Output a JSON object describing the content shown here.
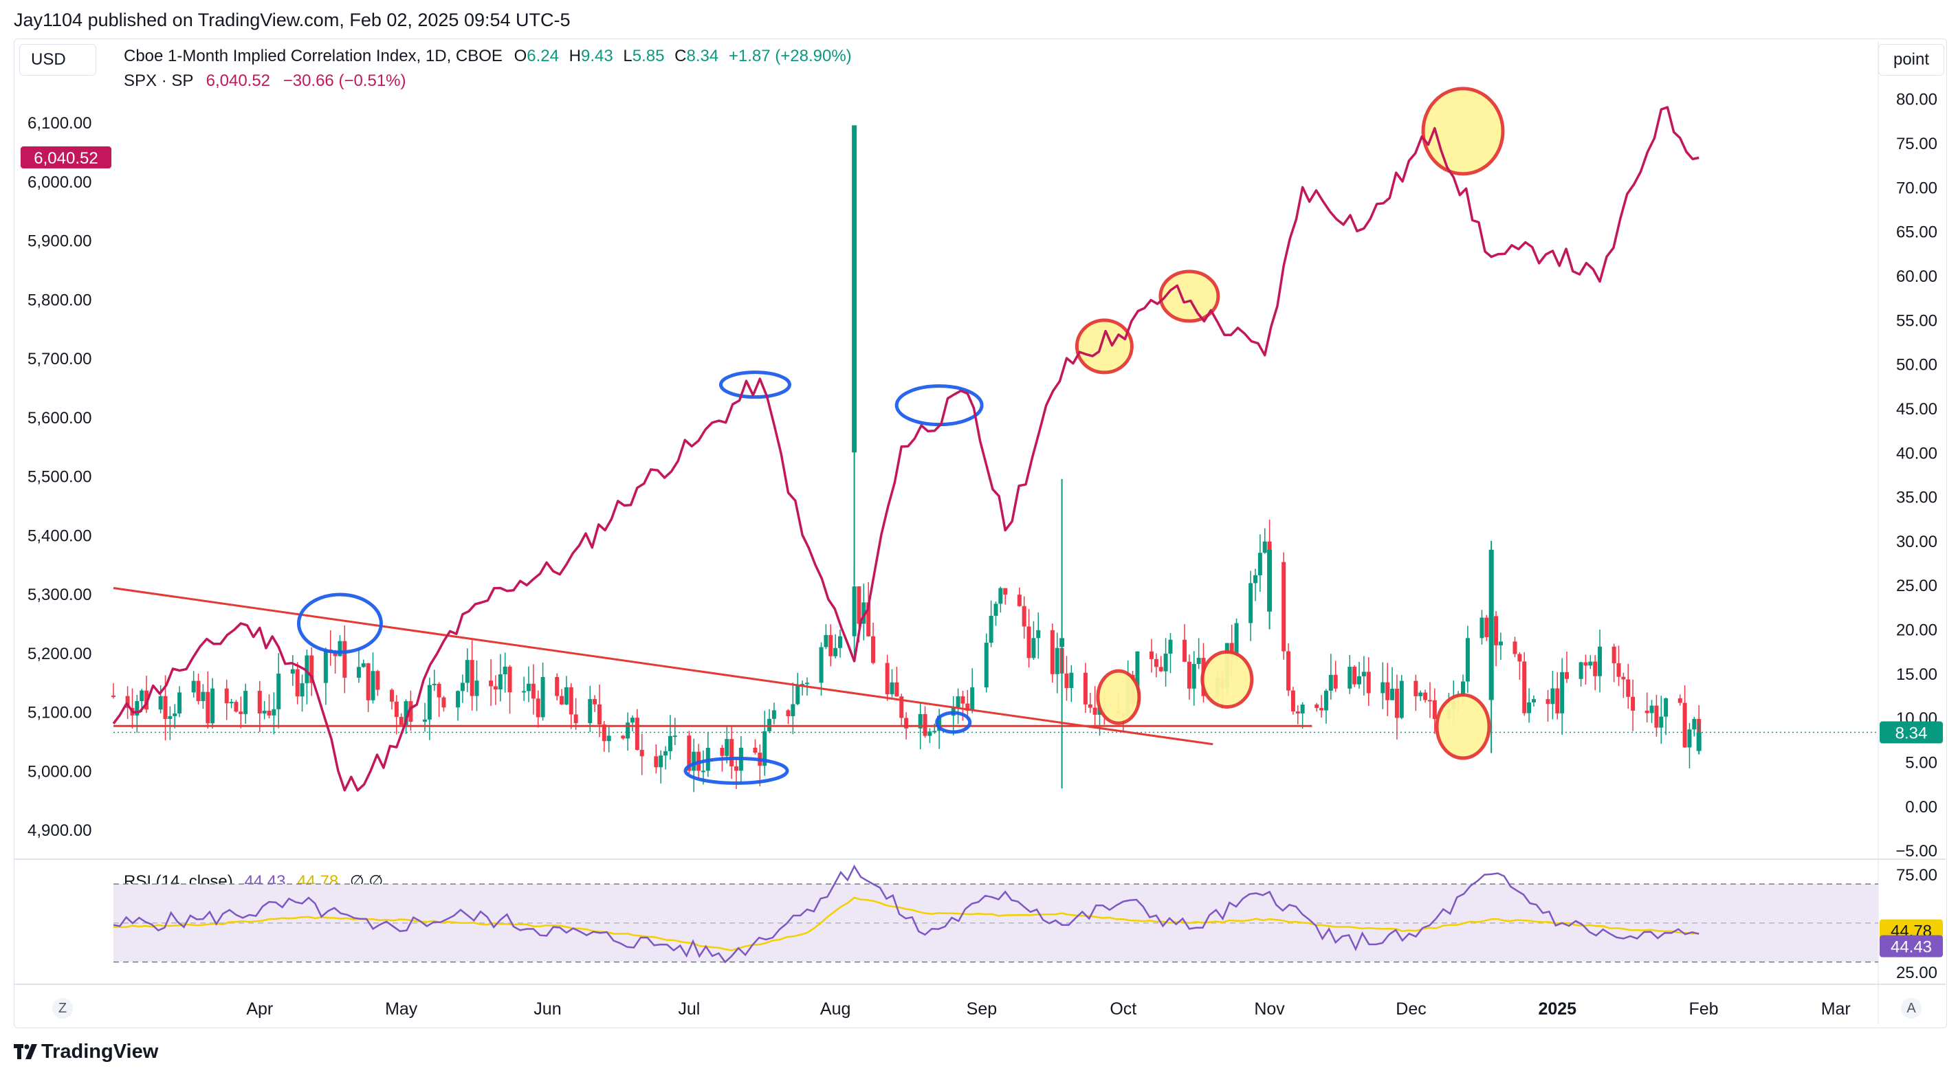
{
  "publisher": "Jay1104 published on TradingView.com, Feb 02, 2025 09:54 UTC-5",
  "currency_button": "USD",
  "scale_button": "point",
  "zoom_icon": "Z",
  "auto_icon": "A",
  "brand": "TradingView",
  "brand_icon": "tradingview-logo-icon",
  "legend": {
    "main_title": "Cboe 1-Month Implied Correlation Index, 1D, CBOE",
    "o_label": "O",
    "o_value": "6.24",
    "h_label": "H",
    "h_value": "9.43",
    "l_label": "L",
    "l_value": "5.85",
    "c_label": "C",
    "c_value": "8.34",
    "change": "+1.87 (+28.90%)",
    "spx_title": "SPX · SP",
    "spx_value": "6,040.52",
    "spx_change": "−30.66 (−0.51%)",
    "rsi_title": "RSI (14, close)",
    "rsi_value": "44.43",
    "rsi_ma": "44.78",
    "rsi_icons": "∅ ∅"
  },
  "colors": {
    "spx_line": "#c2185b",
    "up": "#089981",
    "down": "#f23645",
    "trendline": "#e53935",
    "rsi_line": "#7e57c2",
    "rsi_ma": "#f5d000",
    "rsi_band": "#ede7f6",
    "highlight_fill": "#fff59d",
    "circle_blue": "#1e5eea",
    "circle_red": "#e53935"
  },
  "chart_data": [
    {
      "type": "line",
      "name": "SPX · SP",
      "axis": "left",
      "ylim": [
        4850,
        6170
      ],
      "yticks": [
        "6,100.00",
        "6,000.00",
        "5,900.00",
        "5,800.00",
        "5,700.00",
        "5,600.00",
        "5,500.00",
        "5,400.00",
        "5,300.00",
        "5,200.00",
        "5,100.00",
        "5,000.00",
        "4,900.00"
      ],
      "last_label": "6,040.52",
      "x": [
        "2024-03-01",
        "2024-03-15",
        "2024-03-28",
        "2024-04-05",
        "2024-04-12",
        "2024-04-19",
        "2024-04-30",
        "2024-05-10",
        "2024-05-22",
        "2024-06-05",
        "2024-06-20",
        "2024-07-03",
        "2024-07-16",
        "2024-07-25",
        "2024-08-05",
        "2024-08-15",
        "2024-08-29",
        "2024-09-06",
        "2024-09-19",
        "2024-09-30",
        "2024-10-11",
        "2024-10-31",
        "2024-11-08",
        "2024-11-21",
        "2024-12-06",
        "2024-12-18",
        "2024-12-31",
        "2025-01-10",
        "2025-01-23",
        "2025-01-31"
      ],
      "y": [
        5080,
        5170,
        5250,
        5210,
        5160,
        4967,
        5040,
        5220,
        5310,
        5350,
        5480,
        5560,
        5665,
        5400,
        5186,
        5550,
        5640,
        5408,
        5700,
        5740,
        5815,
        5705,
        5990,
        5920,
        6090,
        5872,
        5882,
        5830,
        6122,
        6040
      ]
    },
    {
      "type": "candlestick",
      "name": "Cboe 1-Month Implied Correlation Index",
      "axis": "right",
      "ylim": [
        -6,
        82
      ],
      "yticks": [
        "80.00",
        "75.00",
        "70.00",
        "65.00",
        "60.00",
        "55.00",
        "50.00",
        "45.00",
        "40.00",
        "35.00",
        "30.00",
        "25.00",
        "20.00",
        "15.00",
        "10.00",
        "5.00",
        "0.00",
        "−5.00"
      ],
      "last_label": "8.34",
      "x": [
        "2024-03-01",
        "2024-03-15",
        "2024-04-01",
        "2024-04-15",
        "2024-05-01",
        "2024-05-15",
        "2024-06-01",
        "2024-06-15",
        "2024-07-01",
        "2024-07-15",
        "2024-07-25",
        "2024-08-05",
        "2024-08-12",
        "2024-08-20",
        "2024-08-29",
        "2024-09-06",
        "2024-09-12",
        "2024-09-19",
        "2024-09-30",
        "2024-10-07",
        "2024-10-21",
        "2024-10-31",
        "2024-11-06",
        "2024-11-20",
        "2024-12-06",
        "2024-12-18",
        "2024-12-27",
        "2025-01-10",
        "2025-01-20",
        "2025-01-31"
      ],
      "close": [
        12.5,
        12.0,
        10.5,
        18.0,
        11.0,
        14.5,
        12.0,
        9.0,
        5.0,
        5.5,
        14.0,
        24.0,
        12.0,
        10.0,
        12.0,
        25.0,
        18.0,
        15.0,
        11.0,
        18.0,
        13.0,
        29.0,
        12.0,
        14.0,
        10.0,
        22.0,
        10.0,
        17.0,
        11.0,
        8.34
      ]
    },
    {
      "type": "line",
      "name": "RSI (14, close)",
      "ylim": [
        20,
        82
      ],
      "yticks": [
        "75.00",
        "25.00"
      ],
      "band": [
        70,
        30
      ],
      "mid": 50,
      "ma_label": "44.78",
      "last_label": "44.43",
      "x": [
        "2024-03-01",
        "2024-03-20",
        "2024-04-10",
        "2024-04-25",
        "2024-05-15",
        "2024-06-05",
        "2024-06-25",
        "2024-07-10",
        "2024-07-26",
        "2024-08-05",
        "2024-08-20",
        "2024-09-06",
        "2024-09-18",
        "2024-10-01",
        "2024-10-15",
        "2024-11-01",
        "2024-11-15",
        "2024-12-02",
        "2024-12-18",
        "2025-01-02",
        "2025-01-15",
        "2025-01-31"
      ],
      "rsi": [
        49,
        52,
        60,
        47,
        54,
        45,
        39,
        33,
        57,
        79,
        44,
        66,
        49,
        61,
        47,
        66,
        40,
        43,
        75,
        50,
        42,
        44.43
      ],
      "ma": [
        48,
        49,
        53,
        52,
        50,
        48,
        42,
        36,
        45,
        63,
        55,
        54,
        55,
        52,
        50,
        52,
        48,
        46,
        52,
        50,
        47,
        44.78
      ]
    }
  ],
  "x_axis": {
    "ticks": [
      "Apr",
      "May",
      "Jun",
      "Jul",
      "Aug",
      "Sep",
      "Oct",
      "Nov",
      "Dec",
      "2025",
      "Feb",
      "Mar"
    ],
    "dates": [
      "2024-04-01",
      "2024-05-01",
      "2024-06-01",
      "2024-07-01",
      "2024-08-01",
      "2024-09-01",
      "2024-10-01",
      "2024-11-01",
      "2024-12-01",
      "2025-01-01",
      "2025-02-01",
      "2025-03-01"
    ],
    "range": [
      "2024-03-01",
      "2025-03-10"
    ]
  },
  "annotations": {
    "trendline_descending": {
      "from": [
        "2024-03-01",
        5310
      ],
      "to": [
        "2024-10-20",
        5045
      ]
    },
    "trendline_horizontal": {
      "from": [
        "2024-03-01",
        5076
      ],
      "to": [
        "2024-11-10",
        5076
      ]
    },
    "blue_circles": [
      "2024-04-18",
      "2024-07-15",
      "2024-08-23",
      "2024-07-10",
      "2024-08-26"
    ],
    "red_circles": [
      "2024-09-30",
      "2024-10-22",
      "2024-12-10",
      "2024-12-26",
      "2024-10-14"
    ]
  }
}
